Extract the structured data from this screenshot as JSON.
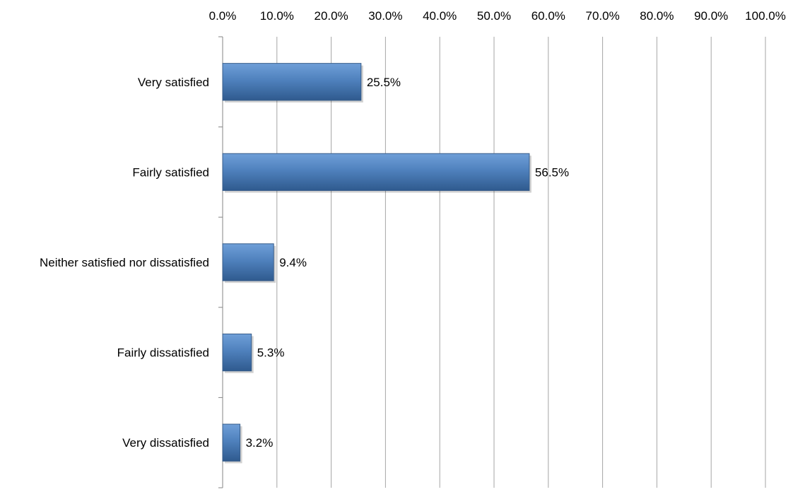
{
  "chart_data": {
    "type": "bar",
    "orientation": "horizontal",
    "categories": [
      "Very satisfied",
      "Fairly satisfied",
      "Neither satisfied nor dissatisfied",
      "Fairly dissatisfied",
      "Very dissatisfied"
    ],
    "values": [
      25.5,
      56.5,
      9.4,
      5.3,
      3.2
    ],
    "data_labels": [
      "25.5%",
      "56.5%",
      "9.4%",
      "5.3%",
      "3.2%"
    ],
    "x_ticks": [
      "0.0%",
      "10.0%",
      "20.0%",
      "30.0%",
      "40.0%",
      "50.0%",
      "60.0%",
      "70.0%",
      "80.0%",
      "90.0%",
      "100.0%"
    ],
    "xlim": [
      0,
      100
    ],
    "x_axis_position": "top",
    "grid": true,
    "legend": false,
    "title": "",
    "xlabel": "",
    "ylabel": "",
    "colors": {
      "bar": "#4f81bd",
      "bar_light": "#6f9fd8",
      "bar_dark": "#2f5a8e",
      "bar_edge": "#385d8a",
      "grid": "#a6a6a6",
      "axis": "#868686"
    }
  }
}
